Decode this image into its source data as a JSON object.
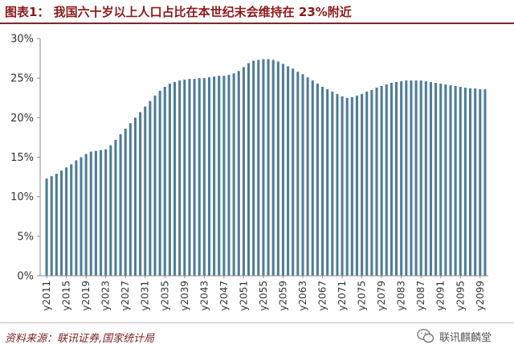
{
  "header": {
    "title": "图表1： 我国六十岁以上人口占比在本世纪末会维持在 23%附近"
  },
  "footer": {
    "source": "资料来源：联讯证券,国家统计局",
    "watermark": "联讯麒麟堂"
  },
  "colors": {
    "bar": "#4f7c98",
    "title": "#8b1a1a",
    "axis": "#8c8c8c"
  },
  "chart_data": {
    "type": "bar",
    "title": "",
    "xlabel": "",
    "ylabel": "",
    "ylim": [
      0,
      30
    ],
    "y_tick_labels": [
      "0%",
      "5%",
      "10%",
      "15%",
      "20%",
      "25%",
      "30%"
    ],
    "grid": false,
    "legend": "none",
    "categories": [
      "y2011",
      "y2012",
      "y2013",
      "y2014",
      "y2015",
      "y2016",
      "y2017",
      "y2018",
      "y2019",
      "y2020",
      "y2021",
      "y2022",
      "y2023",
      "y2024",
      "y2025",
      "y2026",
      "y2027",
      "y2028",
      "y2029",
      "y2030",
      "y2031",
      "y2032",
      "y2033",
      "y2034",
      "y2035",
      "y2036",
      "y2037",
      "y2038",
      "y2039",
      "y2040",
      "y2041",
      "y2042",
      "y2043",
      "y2044",
      "y2045",
      "y2046",
      "y2047",
      "y2048",
      "y2049",
      "y2050",
      "y2051",
      "y2052",
      "y2053",
      "y2054",
      "y2055",
      "y2056",
      "y2057",
      "y2058",
      "y2059",
      "y2060",
      "y2061",
      "y2062",
      "y2063",
      "y2064",
      "y2065",
      "y2066",
      "y2067",
      "y2068",
      "y2069",
      "y2070",
      "y2071",
      "y2072",
      "y2073",
      "y2074",
      "y2075",
      "y2076",
      "y2077",
      "y2078",
      "y2079",
      "y2080",
      "y2081",
      "y2082",
      "y2083",
      "y2084",
      "y2085",
      "y2086",
      "y2087",
      "y2088",
      "y2089",
      "y2090",
      "y2091",
      "y2092",
      "y2093",
      "y2094",
      "y2095",
      "y2096",
      "y2097",
      "y2098",
      "y2099",
      "y2100"
    ],
    "shown_tick_labels": [
      "y2011",
      "y2015",
      "y2019",
      "y2023",
      "y2027",
      "y2031",
      "y2035",
      "y2039",
      "y2043",
      "y2047",
      "y2051",
      "y2055",
      "y2059",
      "y2063",
      "y2067",
      "y2071",
      "y2075",
      "y2079",
      "y2083",
      "y2087",
      "y2091",
      "y2095",
      "y2099"
    ],
    "series": [
      {
        "values": [
          12.3,
          12.6,
          12.9,
          13.3,
          13.7,
          14.1,
          14.6,
          15.0,
          15.4,
          15.7,
          15.8,
          15.9,
          16.0,
          16.5,
          17.2,
          17.9,
          18.6,
          19.3,
          20.0,
          20.7,
          21.4,
          22.1,
          22.8,
          23.4,
          23.9,
          24.3,
          24.5,
          24.7,
          24.8,
          24.9,
          24.9,
          25.0,
          25.0,
          25.1,
          25.2,
          25.3,
          25.3,
          25.4,
          25.6,
          25.9,
          26.4,
          26.9,
          27.2,
          27.3,
          27.4,
          27.4,
          27.3,
          27.1,
          26.8,
          26.5,
          26.2,
          25.8,
          25.5,
          25.1,
          24.7,
          24.3,
          23.9,
          23.6,
          23.3,
          23.0,
          22.7,
          22.5,
          22.6,
          22.8,
          23.0,
          23.3,
          23.5,
          23.8,
          24.0,
          24.2,
          24.4,
          24.5,
          24.6,
          24.7,
          24.7,
          24.7,
          24.7,
          24.6,
          24.5,
          24.4,
          24.3,
          24.2,
          24.1,
          24.0,
          23.9,
          23.8,
          23.7,
          23.7,
          23.6,
          23.6
        ]
      }
    ]
  }
}
